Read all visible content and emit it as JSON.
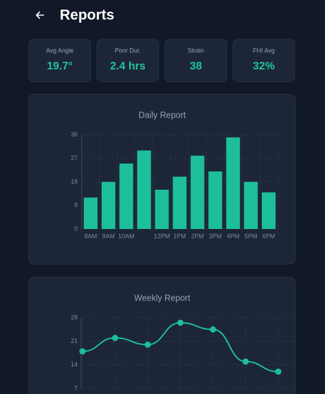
{
  "header": {
    "title": "Reports"
  },
  "stats": [
    {
      "label": "Avg Angle",
      "value": "19.7°"
    },
    {
      "label": "Poor Dur.",
      "value": "2.4 hrs"
    },
    {
      "label": "Strain",
      "value": "38"
    },
    {
      "label": "FHI Avg",
      "value": "32%"
    }
  ],
  "chart_data": [
    {
      "type": "bar",
      "title": "Daily Report",
      "categories": [
        "8AM",
        "9AM",
        "10AM",
        null,
        "12PM",
        "1PM",
        "2PM",
        "3PM",
        "4PM",
        "5PM",
        "6PM"
      ],
      "values": [
        12,
        18,
        25,
        30,
        15,
        20,
        28,
        22,
        35,
        18,
        14
      ],
      "color": "#1dbf9a",
      "ylim": [
        0,
        36
      ],
      "yticks": [
        0,
        9,
        18,
        27,
        36
      ],
      "grid": true
    },
    {
      "type": "line",
      "title": "Weekly Report",
      "categories": [
        null,
        null,
        null,
        null,
        null,
        null,
        null
      ],
      "values": [
        18,
        22,
        20,
        26.5,
        24.5,
        15,
        12
      ],
      "color": "#1dbf9a",
      "ylim": [
        7,
        28
      ],
      "yticks": [
        7,
        14,
        21,
        28
      ],
      "grid": true
    }
  ]
}
